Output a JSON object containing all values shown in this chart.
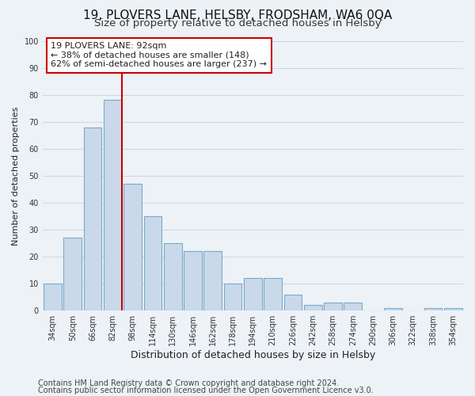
{
  "title1": "19, PLOVERS LANE, HELSBY, FRODSHAM, WA6 0QA",
  "title2": "Size of property relative to detached houses in Helsby",
  "xlabel": "Distribution of detached houses by size in Helsby",
  "ylabel": "Number of detached properties",
  "categories": [
    "34sqm",
    "50sqm",
    "66sqm",
    "82sqm",
    "98sqm",
    "114sqm",
    "130sqm",
    "146sqm",
    "162sqm",
    "178sqm",
    "194sqm",
    "210sqm",
    "226sqm",
    "242sqm",
    "258sqm",
    "274sqm",
    "290sqm",
    "306sqm",
    "322sqm",
    "338sqm",
    "354sqm"
  ],
  "bar_heights": [
    10,
    27,
    68,
    78,
    47,
    35,
    25,
    22,
    22,
    10,
    12,
    12,
    6,
    2,
    3,
    3,
    0,
    1,
    0,
    1,
    1
  ],
  "bar_color": "#c9d9ea",
  "bar_edge_color": "#7aaac8",
  "grid_color": "#ccd5de",
  "background_color": "#edf2f7",
  "ylim": [
    0,
    100
  ],
  "property_line_color": "#cc0000",
  "annotation_title": "19 PLOVERS LANE: 92sqm",
  "annotation_line1": "← 38% of detached houses are smaller (148)",
  "annotation_line2": "62% of semi-detached houses are larger (237) →",
  "annotation_box_color": "#ffffff",
  "annotation_box_edge": "#cc0000",
  "footer1": "Contains HM Land Registry data © Crown copyright and database right 2024.",
  "footer2": "Contains public sector information licensed under the Open Government Licence v3.0.",
  "title1_fontsize": 11,
  "title2_fontsize": 9.5,
  "xlabel_fontsize": 9,
  "ylabel_fontsize": 8,
  "tick_fontsize": 7,
  "annotation_fontsize": 8,
  "footer_fontsize": 7
}
